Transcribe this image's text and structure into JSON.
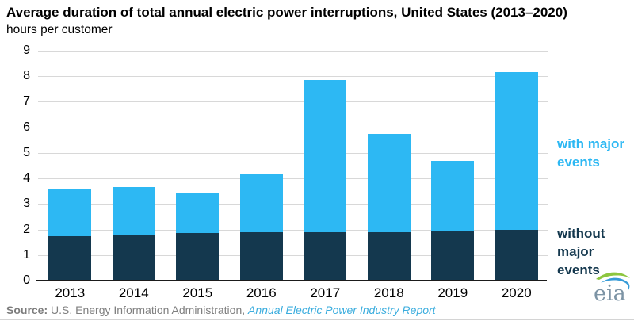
{
  "header": {
    "title": "Average duration of total annual electric power interruptions, United States (2013–2020)",
    "subtitle": "hours per customer"
  },
  "chart_data": {
    "type": "bar",
    "stacked": true,
    "title": "Average duration of total annual electric power interruptions, United States (2013–2020)",
    "ylabel": "hours per customer",
    "xlabel": "",
    "categories": [
      "2013",
      "2014",
      "2015",
      "2016",
      "2017",
      "2018",
      "2019",
      "2020"
    ],
    "series": [
      {
        "name": "without major events",
        "color": "#14384e",
        "values": [
          1.75,
          1.8,
          1.85,
          1.9,
          1.9,
          1.9,
          1.95,
          2.0
        ]
      },
      {
        "name": "with major events",
        "color": "#2db8f3",
        "values": [
          1.85,
          1.85,
          1.55,
          2.25,
          5.95,
          3.85,
          2.75,
          6.15
        ]
      }
    ],
    "totals": [
      3.6,
      3.65,
      3.4,
      4.15,
      7.85,
      5.75,
      4.7,
      8.15
    ],
    "ylim": [
      0,
      9
    ],
    "yticks": [
      0,
      1,
      2,
      3,
      4,
      5,
      6,
      7,
      8,
      9
    ],
    "grid": "horizontal",
    "legend_position": "right",
    "gridline_color": "#d8d8d8",
    "axis_color": "#1b1b1b"
  },
  "legend": {
    "with_major": {
      "label": "with major events",
      "color": "#2db8f3"
    },
    "without_major": {
      "label": "without major events",
      "color": "#14384e"
    }
  },
  "source": {
    "label": "Source:",
    "text": " U.S. Energy Information Administration, ",
    "link": "Annual Electric Power Industry Report"
  },
  "logo": {
    "text": "eia"
  }
}
